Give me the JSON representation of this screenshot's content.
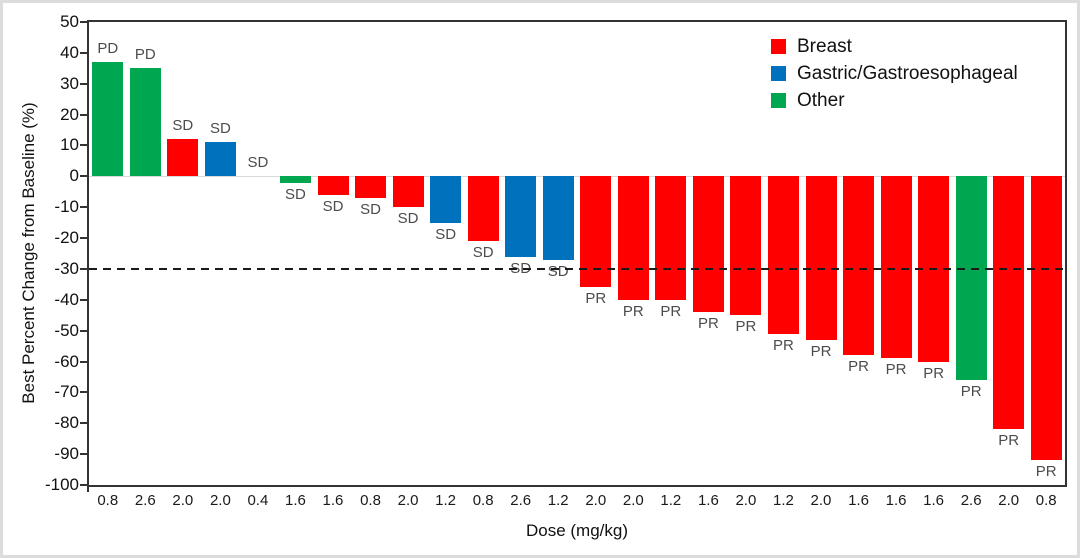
{
  "chart_data": {
    "type": "bar",
    "title": "",
    "xlabel": "Dose (mg/kg)",
    "ylabel": "Best Percent Change from Baseline (%)",
    "ylim": [
      -100,
      50
    ],
    "ytick_interval": 10,
    "reference_line_y": -30,
    "zero_line": true,
    "grid": false,
    "legend_position": "top-right-inside",
    "legend": [
      {
        "label": "Breast",
        "color": "#ff0000"
      },
      {
        "label": "Gastric/Gastroesophageal",
        "color": "#0071bc"
      },
      {
        "label": "Other",
        "color": "#00a650"
      }
    ],
    "colors": {
      "axis": "#333333",
      "reference_line": "#1a1a1a",
      "zero_line": "#d9d9d9",
      "response_label": "#4c4c4c"
    },
    "bars": [
      {
        "dose": "0.8",
        "value": 37,
        "group": "Other",
        "response": "PD"
      },
      {
        "dose": "2.6",
        "value": 35,
        "group": "Other",
        "response": "PD"
      },
      {
        "dose": "2.0",
        "value": 12,
        "group": "Breast",
        "response": "SD"
      },
      {
        "dose": "2.0",
        "value": 11,
        "group": "Gastric/Gastroesophageal",
        "response": "SD"
      },
      {
        "dose": "0.4",
        "value": 0,
        "group": null,
        "response": "SD"
      },
      {
        "dose": "1.6",
        "value": -2,
        "group": "Other",
        "response": "SD"
      },
      {
        "dose": "1.6",
        "value": -6,
        "group": "Breast",
        "response": "SD"
      },
      {
        "dose": "0.8",
        "value": -7,
        "group": "Breast",
        "response": "SD"
      },
      {
        "dose": "2.0",
        "value": -10,
        "group": "Breast",
        "response": "SD"
      },
      {
        "dose": "1.2",
        "value": -15,
        "group": "Gastric/Gastroesophageal",
        "response": "SD"
      },
      {
        "dose": "0.8",
        "value": -21,
        "group": "Breast",
        "response": "SD"
      },
      {
        "dose": "2.6",
        "value": -26,
        "group": "Gastric/Gastroesophageal",
        "response": "SD"
      },
      {
        "dose": "1.2",
        "value": -27,
        "group": "Gastric/Gastroesophageal",
        "response": "SD"
      },
      {
        "dose": "2.0",
        "value": -36,
        "group": "Breast",
        "response": "PR"
      },
      {
        "dose": "2.0",
        "value": -40,
        "group": "Breast",
        "response": "PR"
      },
      {
        "dose": "1.2",
        "value": -40,
        "group": "Breast",
        "response": "PR"
      },
      {
        "dose": "1.6",
        "value": -44,
        "group": "Breast",
        "response": "PR"
      },
      {
        "dose": "2.0",
        "value": -45,
        "group": "Breast",
        "response": "PR"
      },
      {
        "dose": "1.2",
        "value": -51,
        "group": "Breast",
        "response": "PR"
      },
      {
        "dose": "2.0",
        "value": -53,
        "group": "Breast",
        "response": "PR"
      },
      {
        "dose": "1.6",
        "value": -58,
        "group": "Breast",
        "response": "PR"
      },
      {
        "dose": "1.6",
        "value": -59,
        "group": "Breast",
        "response": "PR"
      },
      {
        "dose": "1.6",
        "value": -60,
        "group": "Breast",
        "response": "PR"
      },
      {
        "dose": "2.6",
        "value": -66,
        "group": "Other",
        "response": "PR"
      },
      {
        "dose": "2.0",
        "value": -82,
        "group": "Breast",
        "response": "PR"
      },
      {
        "dose": "0.8",
        "value": -92,
        "group": "Breast",
        "response": "PR"
      }
    ]
  }
}
